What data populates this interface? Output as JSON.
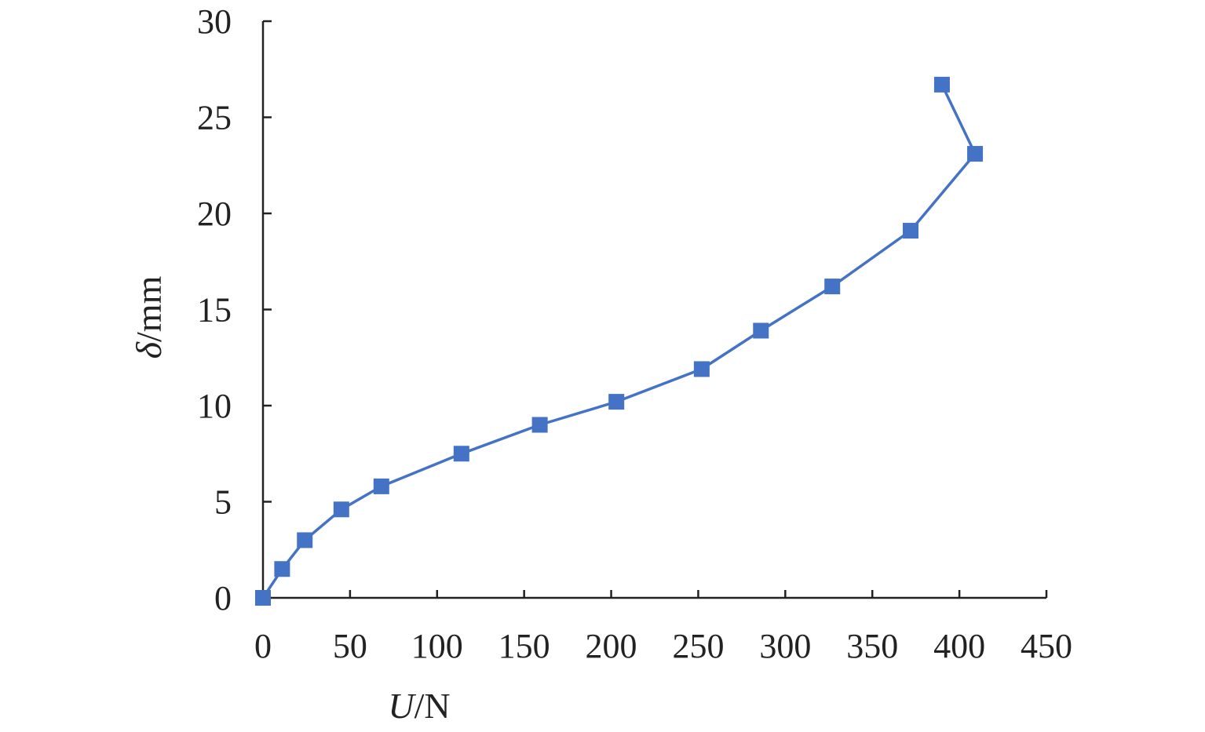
{
  "chart_data": {
    "type": "line",
    "xlabel_italic": "U",
    "xlabel_rest": "/N",
    "ylabel_italic": "δ",
    "ylabel_rest": "/mm",
    "xlim": [
      0,
      450
    ],
    "ylim": [
      0,
      30
    ],
    "x_ticks": [
      "0",
      "50",
      "100",
      "150",
      "200",
      "250",
      "300",
      "350",
      "400",
      "450"
    ],
    "y_ticks": [
      "0",
      "5",
      "10",
      "15",
      "20",
      "25",
      "30"
    ],
    "x_tick_values": [
      0,
      50,
      100,
      150,
      200,
      250,
      300,
      350,
      400,
      450
    ],
    "y_tick_values": [
      0,
      5,
      10,
      15,
      20,
      25,
      30
    ],
    "grid": false,
    "marker": "square",
    "color": "#4472c4",
    "series": [
      {
        "x": [
          0,
          11,
          24,
          45,
          68,
          114,
          159,
          203,
          252,
          286,
          327,
          372,
          409,
          390
        ],
        "y": [
          0,
          1.5,
          3,
          4.6,
          5.8,
          7.5,
          9,
          10.2,
          11.9,
          13.9,
          16.2,
          19.1,
          23.1,
          26.7
        ]
      }
    ]
  }
}
